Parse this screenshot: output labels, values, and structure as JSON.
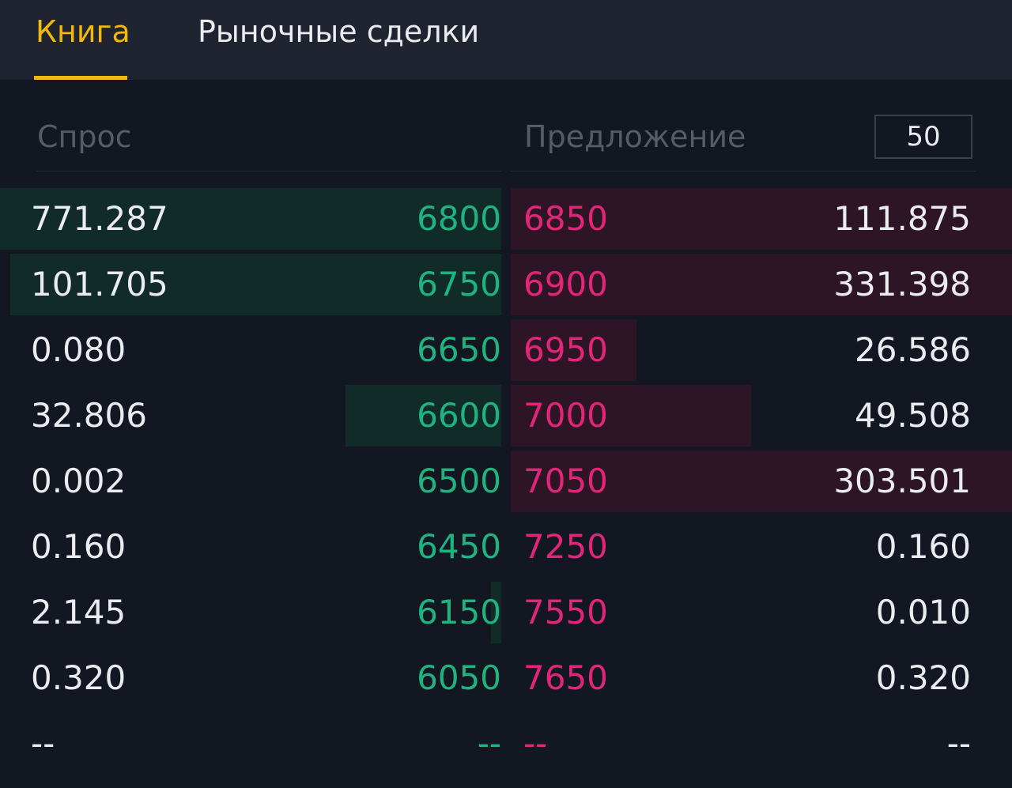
{
  "tabs": [
    {
      "label": "Книга",
      "active": true
    },
    {
      "label": "Рыночные сделки",
      "active": false
    }
  ],
  "headers": {
    "bids": "Спрос",
    "asks": "Предложение",
    "depth": "50"
  },
  "colors": {
    "accent": "#f0b90b",
    "bid": "#1fb47f",
    "ask": "#e3257a",
    "bid_bar": "#112b29",
    "ask_bar": "#2d1525"
  },
  "bids": [
    {
      "qty": "771.287",
      "price": "6800",
      "depth": 1.0
    },
    {
      "qty": "101.705",
      "price": "6750",
      "depth": 0.98
    },
    {
      "qty": "0.080",
      "price": "6650",
      "depth": 0
    },
    {
      "qty": "32.806",
      "price": "6600",
      "depth": 0.31
    },
    {
      "qty": "0.002",
      "price": "6500",
      "depth": 0
    },
    {
      "qty": "0.160",
      "price": "6450",
      "depth": 0
    },
    {
      "qty": "2.145",
      "price": "6150",
      "depth": 0.02
    },
    {
      "qty": "0.320",
      "price": "6050",
      "depth": 0
    },
    {
      "qty": "--",
      "price": "--",
      "depth": 0
    }
  ],
  "asks": [
    {
      "price": "6850",
      "qty": "111.875",
      "depth": 1.0
    },
    {
      "price": "6900",
      "qty": "331.398",
      "depth": 1.0
    },
    {
      "price": "6950",
      "qty": "26.586",
      "depth": 0.25
    },
    {
      "price": "7000",
      "qty": "49.508",
      "depth": 0.48
    },
    {
      "price": "7050",
      "qty": "303.501",
      "depth": 1.0
    },
    {
      "price": "7250",
      "qty": "0.160",
      "depth": 0
    },
    {
      "price": "7550",
      "qty": "0.010",
      "depth": 0
    },
    {
      "price": "7650",
      "qty": "0.320",
      "depth": 0
    },
    {
      "price": "--",
      "qty": "--",
      "depth": 0
    }
  ]
}
